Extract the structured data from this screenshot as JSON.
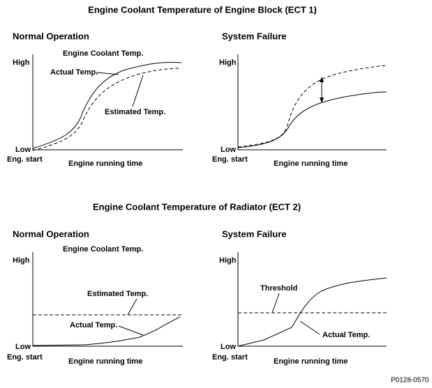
{
  "sections": [
    {
      "title": "Engine Coolant Temperature of Engine Block (ECT 1)",
      "panels": [
        {
          "title": "Normal Operation",
          "y_high": "High",
          "y_low": "Low",
          "x_start": "Eng. start",
          "x_label": "Engine running time",
          "labels": [
            "Engine Coolant Temp.",
            "Actual Temp.",
            "Estimated Temp."
          ]
        },
        {
          "title": "System Failure",
          "y_high": "High",
          "y_low": "Low",
          "x_start": "Eng. start",
          "x_label": "Engine running time"
        }
      ]
    },
    {
      "title": "Engine Coolant Temperature of Radiator (ECT 2)",
      "panels": [
        {
          "title": "Normal Operation",
          "y_high": "High",
          "y_low": "Low",
          "x_start": "Eng. start",
          "x_label": "Engine running time",
          "labels": [
            "Engine Coolant Temp.",
            "Estimated Temp.",
            "Actual Temp."
          ]
        },
        {
          "title": "System Failure",
          "y_high": "High",
          "y_low": "Low",
          "x_start": "Eng. start",
          "x_label": "Engine running time",
          "labels": [
            "Threshold",
            "Actual Temp."
          ]
        }
      ]
    }
  ],
  "footer": "P0128-0570"
}
